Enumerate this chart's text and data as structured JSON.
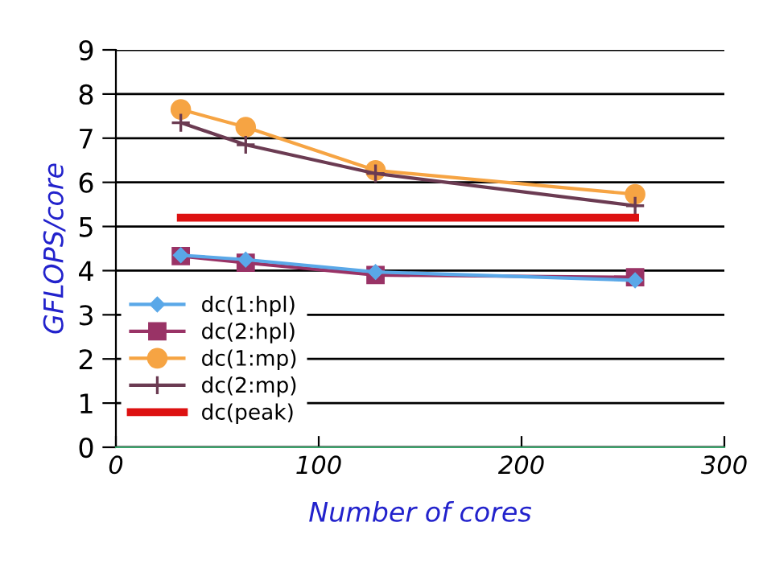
{
  "chart_data": {
    "type": "line",
    "xlabel": "Number of cores",
    "ylabel": "GFLOPS/core",
    "x": [
      32,
      64,
      128,
      256
    ],
    "series": [
      {
        "name": "dc(1:hpl)",
        "color": "#5aa8e8",
        "marker": "diamond",
        "values": [
          4.35,
          4.25,
          3.97,
          3.78
        ]
      },
      {
        "name": "dc(2:hpl)",
        "color": "#993366",
        "marker": "square",
        "values": [
          4.33,
          4.18,
          3.9,
          3.85
        ]
      },
      {
        "name": "dc(1:mp)",
        "color": "#f6a443",
        "marker": "circle",
        "values": [
          7.65,
          7.25,
          6.27,
          5.73
        ]
      },
      {
        "name": "dc(2:mp)",
        "color": "#6b3b52",
        "marker": "cross",
        "values": [
          7.35,
          6.85,
          6.2,
          5.47
        ]
      },
      {
        "name": "dc(peak)",
        "color": "#dd1111",
        "marker": "none",
        "values": [
          5.2,
          5.2,
          5.2,
          5.2
        ]
      }
    ],
    "xlim": [
      0,
      300
    ],
    "xticks": [
      0,
      100,
      200,
      300
    ],
    "ylim": [
      0,
      9
    ],
    "yticks": [
      0,
      1,
      2,
      3,
      4,
      5,
      6,
      7,
      8,
      9
    ],
    "grid": "y",
    "legend": "left",
    "line_style": "solid"
  }
}
